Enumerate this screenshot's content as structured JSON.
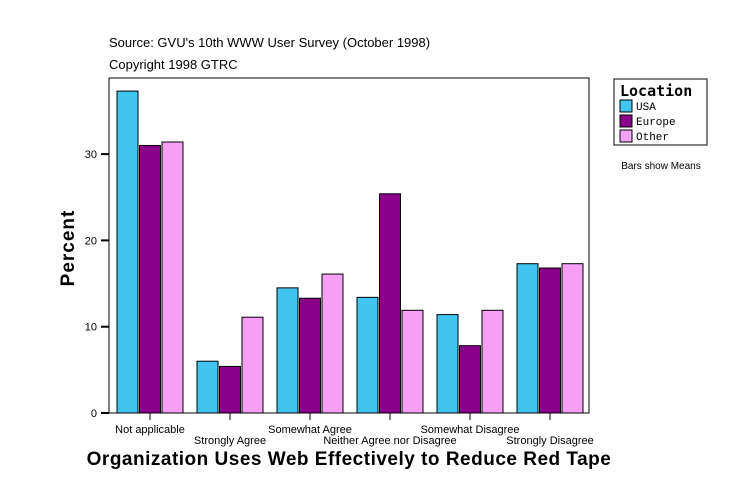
{
  "chart_data": {
    "type": "bar",
    "source": "Source: GVU's 10th WWW User Survey (October 1998)",
    "copyright": "Copyright 1998 GTRC",
    "xlabel": "Organization Uses Web Effectively to Reduce Red Tape",
    "ylabel": "Percent",
    "ylim": [
      0,
      38.6
    ],
    "yticks": [
      0,
      10,
      20,
      30
    ],
    "categories": [
      "Not applicable",
      "Strongly Agree",
      "Somewhat Agree",
      "Neither Agree nor Disagree",
      "Somewhat Disagree",
      "Strongly Disagree"
    ],
    "legend_title": "Location",
    "legend_placement": "right",
    "note": "Bars show Means",
    "grid": false,
    "series": [
      {
        "name": "USA",
        "color": "#40c4f0",
        "values": [
          37.3,
          6.0,
          14.5,
          13.4,
          11.4,
          17.3
        ]
      },
      {
        "name": "Europe",
        "color": "#8b008b",
        "values": [
          31.0,
          5.4,
          13.3,
          25.4,
          7.8,
          16.8
        ]
      },
      {
        "name": "Other",
        "color": "#f5a0f5",
        "values": [
          31.4,
          11.1,
          16.1,
          11.9,
          11.9,
          17.3
        ]
      }
    ]
  }
}
